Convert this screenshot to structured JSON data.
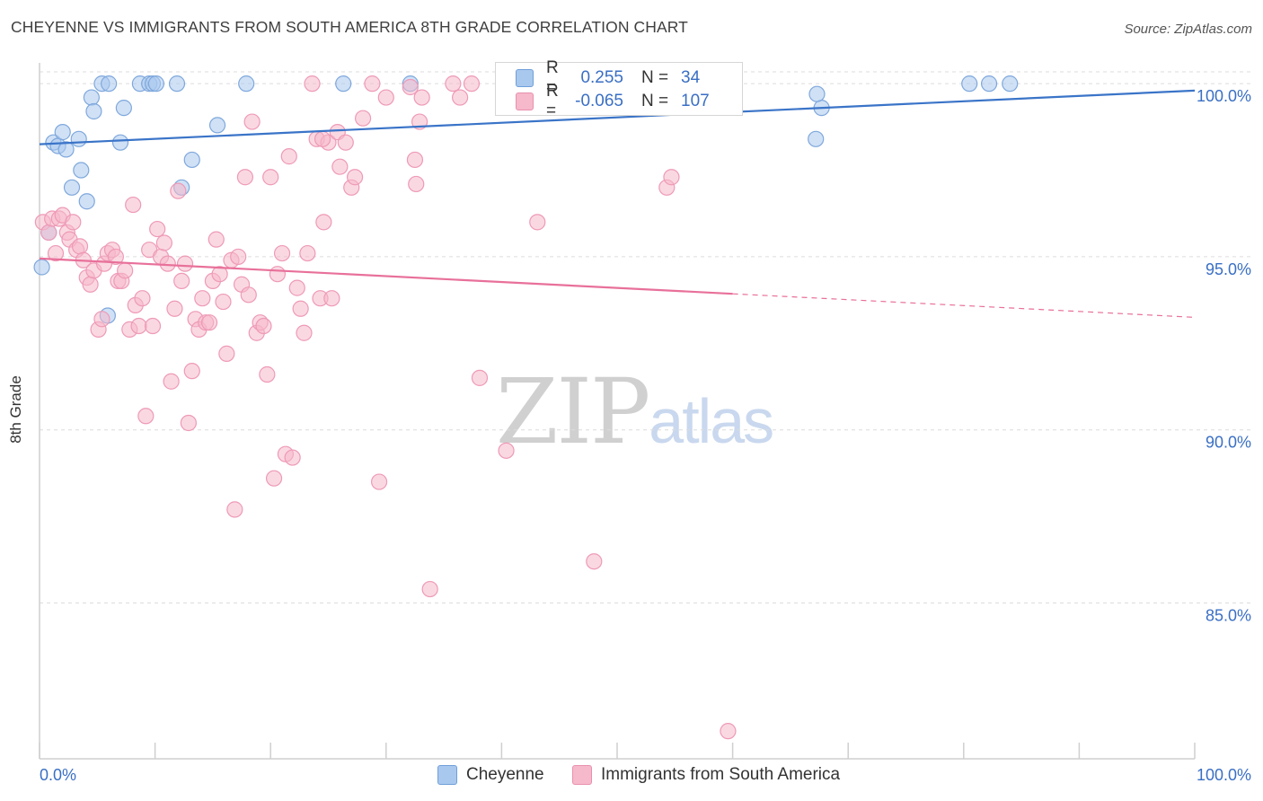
{
  "header": {
    "title": "CHEYENNE VS IMMIGRANTS FROM SOUTH AMERICA 8TH GRADE CORRELATION CHART",
    "source": "Source: ZipAtlas.com"
  },
  "watermark": {
    "zip": "ZIP",
    "atlas": "atlas"
  },
  "legend": {
    "rows": [
      {
        "r_label": "R =",
        "r_value": "0.255",
        "n_label": "N =",
        "n_value": "34",
        "color": "#a9c8ee"
      },
      {
        "r_label": "R =",
        "r_value": "-0.065",
        "n_label": "N =",
        "n_value": "107",
        "color": "#f6b8cb"
      }
    ]
  },
  "bottom_legend": {
    "series1": "Cheyenne",
    "series2": "Immigrants from South America"
  },
  "chart_data": {
    "type": "scatter",
    "title": "CHEYENNE VS IMMIGRANTS FROM SOUTH AMERICA 8TH GRADE CORRELATION CHART",
    "xlabel": "",
    "ylabel": "8th Grade",
    "xlim": [
      0,
      100
    ],
    "ylim": [
      80.5,
      100.6
    ],
    "x_tick_labels": [
      "0.0%",
      "100.0%"
    ],
    "y_ticks": [
      85,
      90,
      95,
      100
    ],
    "y_tick_labels": [
      "85.0%",
      "90.0%",
      "95.0%",
      "100.0%"
    ],
    "colors": {
      "cheyenne": "#3a74c8",
      "cheyenne_fill": "#a9c8ee",
      "immigrants": "#e8709a",
      "immigrants_fill": "#f6b8cb",
      "axis_text": "#3a6fc4"
    },
    "series": [
      {
        "name": "Cheyenne",
        "trend": {
          "x": [
            0,
            100
          ],
          "y": [
            98.25,
            99.8
          ],
          "dashed_from": null
        },
        "points": [
          [
            0.2,
            94.7
          ],
          [
            0.8,
            95.7
          ],
          [
            1.2,
            98.3
          ],
          [
            1.6,
            98.2
          ],
          [
            2.0,
            98.6
          ],
          [
            2.3,
            98.1
          ],
          [
            2.8,
            97.0
          ],
          [
            3.4,
            98.4
          ],
          [
            3.6,
            97.5
          ],
          [
            4.1,
            96.6
          ],
          [
            4.5,
            99.6
          ],
          [
            4.7,
            99.2
          ],
          [
            5.4,
            100.0
          ],
          [
            6.0,
            100.0
          ],
          [
            7.0,
            98.3
          ],
          [
            7.3,
            99.3
          ],
          [
            8.7,
            100.0
          ],
          [
            9.5,
            100.0
          ],
          [
            9.8,
            100.0
          ],
          [
            10.1,
            100.0
          ],
          [
            11.9,
            100.0
          ],
          [
            12.3,
            97.0
          ],
          [
            13.2,
            97.8
          ],
          [
            15.4,
            98.8
          ],
          [
            17.9,
            100.0
          ],
          [
            26.3,
            100.0
          ],
          [
            32.1,
            100.0
          ],
          [
            5.9,
            93.3
          ],
          [
            67.7,
            99.3
          ],
          [
            67.3,
            99.7
          ],
          [
            84.0,
            100.0
          ],
          [
            80.5,
            100.0
          ],
          [
            82.2,
            100.0
          ],
          [
            67.2,
            98.4
          ]
        ]
      },
      {
        "name": "Immigrants from South America",
        "trend": {
          "x": [
            0,
            100
          ],
          "y": [
            94.95,
            93.25
          ],
          "dashed_from": 60
        },
        "points": [
          [
            0.3,
            96.0
          ],
          [
            0.8,
            95.7
          ],
          [
            1.1,
            96.1
          ],
          [
            1.4,
            95.1
          ],
          [
            1.7,
            96.1
          ],
          [
            2.0,
            96.2
          ],
          [
            2.4,
            95.7
          ],
          [
            2.6,
            95.5
          ],
          [
            2.9,
            96.0
          ],
          [
            3.2,
            95.2
          ],
          [
            3.5,
            95.3
          ],
          [
            3.8,
            94.9
          ],
          [
            4.1,
            94.4
          ],
          [
            4.4,
            94.2
          ],
          [
            4.7,
            94.6
          ],
          [
            5.1,
            92.9
          ],
          [
            5.4,
            93.2
          ],
          [
            5.6,
            94.8
          ],
          [
            5.9,
            95.1
          ],
          [
            6.3,
            95.2
          ],
          [
            6.6,
            95.0
          ],
          [
            6.8,
            94.3
          ],
          [
            7.1,
            94.3
          ],
          [
            7.4,
            94.6
          ],
          [
            7.8,
            92.9
          ],
          [
            8.1,
            96.5
          ],
          [
            8.3,
            93.6
          ],
          [
            8.6,
            93.0
          ],
          [
            8.9,
            93.8
          ],
          [
            9.2,
            90.4
          ],
          [
            9.5,
            95.2
          ],
          [
            9.8,
            93.0
          ],
          [
            10.2,
            95.8
          ],
          [
            10.5,
            95.0
          ],
          [
            10.8,
            95.4
          ],
          [
            11.1,
            94.8
          ],
          [
            11.4,
            91.4
          ],
          [
            11.7,
            93.5
          ],
          [
            12.0,
            96.9
          ],
          [
            12.3,
            94.3
          ],
          [
            12.6,
            94.8
          ],
          [
            12.9,
            90.2
          ],
          [
            13.2,
            91.7
          ],
          [
            13.5,
            93.2
          ],
          [
            13.8,
            92.9
          ],
          [
            14.1,
            93.8
          ],
          [
            14.4,
            93.1
          ],
          [
            14.7,
            93.1
          ],
          [
            15.0,
            94.3
          ],
          [
            15.3,
            95.5
          ],
          [
            15.6,
            94.5
          ],
          [
            15.9,
            93.7
          ],
          [
            16.2,
            92.2
          ],
          [
            16.6,
            94.9
          ],
          [
            16.9,
            87.7
          ],
          [
            17.2,
            95.0
          ],
          [
            17.5,
            94.2
          ],
          [
            17.8,
            97.3
          ],
          [
            18.1,
            93.9
          ],
          [
            18.4,
            98.9
          ],
          [
            18.8,
            92.8
          ],
          [
            19.1,
            93.1
          ],
          [
            19.4,
            93.0
          ],
          [
            19.7,
            91.6
          ],
          [
            20.0,
            97.3
          ],
          [
            20.3,
            88.6
          ],
          [
            20.6,
            94.5
          ],
          [
            21.0,
            95.1
          ],
          [
            21.3,
            89.3
          ],
          [
            21.6,
            97.9
          ],
          [
            21.9,
            89.2
          ],
          [
            22.3,
            94.1
          ],
          [
            22.6,
            93.5
          ],
          [
            22.9,
            92.8
          ],
          [
            23.2,
            95.1
          ],
          [
            23.6,
            100.0
          ],
          [
            24.0,
            98.4
          ],
          [
            24.3,
            93.8
          ],
          [
            24.6,
            96.0
          ],
          [
            25.0,
            98.3
          ],
          [
            25.3,
            93.8
          ],
          [
            25.8,
            98.6
          ],
          [
            26.0,
            97.6
          ],
          [
            26.5,
            98.3
          ],
          [
            27.0,
            97.0
          ],
          [
            27.3,
            97.3
          ],
          [
            28.0,
            99.0
          ],
          [
            28.8,
            100.0
          ],
          [
            29.4,
            88.5
          ],
          [
            30.0,
            99.6
          ],
          [
            32.1,
            99.9
          ],
          [
            32.5,
            97.8
          ],
          [
            32.6,
            97.1
          ],
          [
            33.1,
            99.6
          ],
          [
            33.8,
            85.4
          ],
          [
            35.8,
            100.0
          ],
          [
            36.4,
            99.6
          ],
          [
            37.4,
            100.0
          ],
          [
            38.1,
            91.5
          ],
          [
            40.4,
            89.4
          ],
          [
            43.1,
            96.0
          ],
          [
            48.0,
            86.2
          ],
          [
            54.3,
            97.0
          ],
          [
            54.7,
            97.3
          ],
          [
            59.6,
            81.3
          ],
          [
            32.9,
            98.9
          ],
          [
            24.5,
            98.4
          ]
        ]
      }
    ]
  }
}
